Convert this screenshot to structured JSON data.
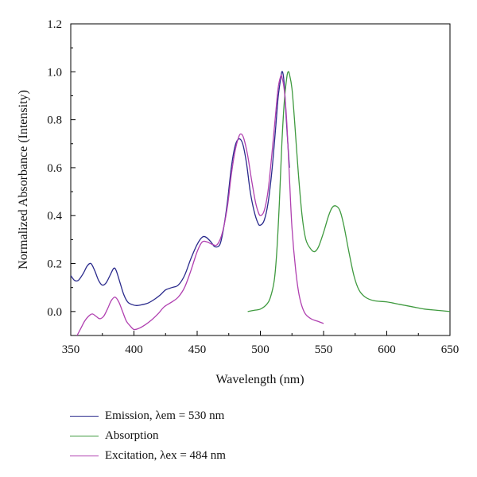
{
  "chart_data": {
    "type": "line",
    "xlabel": "Wavelength (nm)",
    "ylabel": "Normalized Absorbance (Intensity)",
    "xlim": [
      350,
      650
    ],
    "ylim": [
      -0.1,
      1.2
    ],
    "x_ticks": [
      350,
      400,
      450,
      500,
      550,
      600,
      650
    ],
    "y_ticks": [
      0.0,
      0.2,
      0.4,
      0.6,
      0.8,
      1.0,
      1.2
    ],
    "y_tick_labels": [
      "0.0",
      "0.2",
      "0.4",
      "0.6",
      "0.8",
      "1.0",
      "1.2"
    ],
    "grid": false,
    "legend_position": "bottom",
    "series": [
      {
        "name": "Emission, λem = 530 nm",
        "color": "#2a2a8c",
        "points": [
          [
            350,
            0.15
          ],
          [
            353,
            0.13
          ],
          [
            356,
            0.13
          ],
          [
            360,
            0.16
          ],
          [
            363,
            0.19
          ],
          [
            366,
            0.2
          ],
          [
            369,
            0.17
          ],
          [
            372,
            0.13
          ],
          [
            375,
            0.11
          ],
          [
            378,
            0.12
          ],
          [
            381,
            0.15
          ],
          [
            384,
            0.18
          ],
          [
            386,
            0.17
          ],
          [
            389,
            0.12
          ],
          [
            392,
            0.07
          ],
          [
            395,
            0.04
          ],
          [
            398,
            0.03
          ],
          [
            402,
            0.025
          ],
          [
            406,
            0.028
          ],
          [
            411,
            0.035
          ],
          [
            416,
            0.05
          ],
          [
            421,
            0.07
          ],
          [
            425,
            0.09
          ],
          [
            430,
            0.1
          ],
          [
            435,
            0.11
          ],
          [
            440,
            0.15
          ],
          [
            445,
            0.22
          ],
          [
            450,
            0.28
          ],
          [
            454,
            0.31
          ],
          [
            457,
            0.31
          ],
          [
            461,
            0.29
          ],
          [
            464,
            0.27
          ],
          [
            468,
            0.28
          ],
          [
            471,
            0.35
          ],
          [
            474,
            0.46
          ],
          [
            477,
            0.6
          ],
          [
            480,
            0.69
          ],
          [
            483,
            0.72
          ],
          [
            486,
            0.7
          ],
          [
            489,
            0.62
          ],
          [
            492,
            0.5
          ],
          [
            495,
            0.42
          ],
          [
            498,
            0.37
          ],
          [
            500,
            0.36
          ],
          [
            503,
            0.38
          ],
          [
            506,
            0.45
          ],
          [
            509,
            0.58
          ],
          [
            512,
            0.76
          ],
          [
            514,
            0.89
          ],
          [
            516,
            0.97
          ],
          [
            517,
            1.0
          ],
          [
            518,
            0.99
          ],
          [
            519,
            0.94
          ],
          [
            520,
            0.85
          ],
          [
            521,
            0.76
          ],
          [
            522,
            0.68
          ],
          [
            523,
            0.6
          ]
        ]
      },
      {
        "name": "Absorption",
        "color": "#3f9a3f",
        "points": [
          [
            490,
            0.0
          ],
          [
            495,
            0.005
          ],
          [
            500,
            0.01
          ],
          [
            505,
            0.03
          ],
          [
            508,
            0.06
          ],
          [
            511,
            0.13
          ],
          [
            513,
            0.25
          ],
          [
            515,
            0.45
          ],
          [
            517,
            0.7
          ],
          [
            519,
            0.88
          ],
          [
            521,
            0.98
          ],
          [
            522,
            1.0
          ],
          [
            523,
            0.99
          ],
          [
            525,
            0.93
          ],
          [
            527,
            0.8
          ],
          [
            530,
            0.58
          ],
          [
            533,
            0.4
          ],
          [
            536,
            0.3
          ],
          [
            540,
            0.26
          ],
          [
            543,
            0.25
          ],
          [
            546,
            0.27
          ],
          [
            550,
            0.33
          ],
          [
            554,
            0.4
          ],
          [
            557,
            0.435
          ],
          [
            560,
            0.44
          ],
          [
            563,
            0.42
          ],
          [
            566,
            0.36
          ],
          [
            570,
            0.25
          ],
          [
            574,
            0.15
          ],
          [
            578,
            0.09
          ],
          [
            583,
            0.06
          ],
          [
            590,
            0.045
          ],
          [
            600,
            0.04
          ],
          [
            610,
            0.03
          ],
          [
            620,
            0.02
          ],
          [
            630,
            0.01
          ],
          [
            640,
            0.005
          ],
          [
            650,
            0.0
          ]
        ]
      },
      {
        "name": "Excitation, λex = 484 nm",
        "color": "#b040b0",
        "points": [
          [
            355,
            -0.1
          ],
          [
            358,
            -0.07
          ],
          [
            361,
            -0.04
          ],
          [
            364,
            -0.02
          ],
          [
            367,
            -0.01
          ],
          [
            370,
            -0.02
          ],
          [
            373,
            -0.03
          ],
          [
            376,
            -0.02
          ],
          [
            379,
            0.01
          ],
          [
            382,
            0.045
          ],
          [
            385,
            0.06
          ],
          [
            388,
            0.04
          ],
          [
            391,
            0.0
          ],
          [
            394,
            -0.04
          ],
          [
            397,
            -0.06
          ],
          [
            400,
            -0.075
          ],
          [
            404,
            -0.07
          ],
          [
            409,
            -0.055
          ],
          [
            414,
            -0.035
          ],
          [
            419,
            -0.01
          ],
          [
            424,
            0.02
          ],
          [
            430,
            0.04
          ],
          [
            435,
            0.06
          ],
          [
            440,
            0.1
          ],
          [
            445,
            0.17
          ],
          [
            450,
            0.25
          ],
          [
            454,
            0.29
          ],
          [
            458,
            0.29
          ],
          [
            462,
            0.28
          ],
          [
            466,
            0.28
          ],
          [
            470,
            0.33
          ],
          [
            474,
            0.44
          ],
          [
            477,
            0.57
          ],
          [
            480,
            0.67
          ],
          [
            483,
            0.73
          ],
          [
            485,
            0.74
          ],
          [
            487,
            0.72
          ],
          [
            490,
            0.65
          ],
          [
            493,
            0.55
          ],
          [
            496,
            0.46
          ],
          [
            498,
            0.42
          ],
          [
            500,
            0.4
          ],
          [
            503,
            0.42
          ],
          [
            506,
            0.5
          ],
          [
            509,
            0.65
          ],
          [
            512,
            0.82
          ],
          [
            514,
            0.93
          ],
          [
            516,
            0.98
          ],
          [
            517,
            0.98
          ],
          [
            519,
            0.92
          ],
          [
            521,
            0.78
          ],
          [
            523,
            0.56
          ],
          [
            525,
            0.35
          ],
          [
            528,
            0.17
          ],
          [
            531,
            0.06
          ],
          [
            535,
            -0.005
          ],
          [
            540,
            -0.03
          ],
          [
            545,
            -0.04
          ],
          [
            550,
            -0.05
          ]
        ]
      }
    ]
  }
}
